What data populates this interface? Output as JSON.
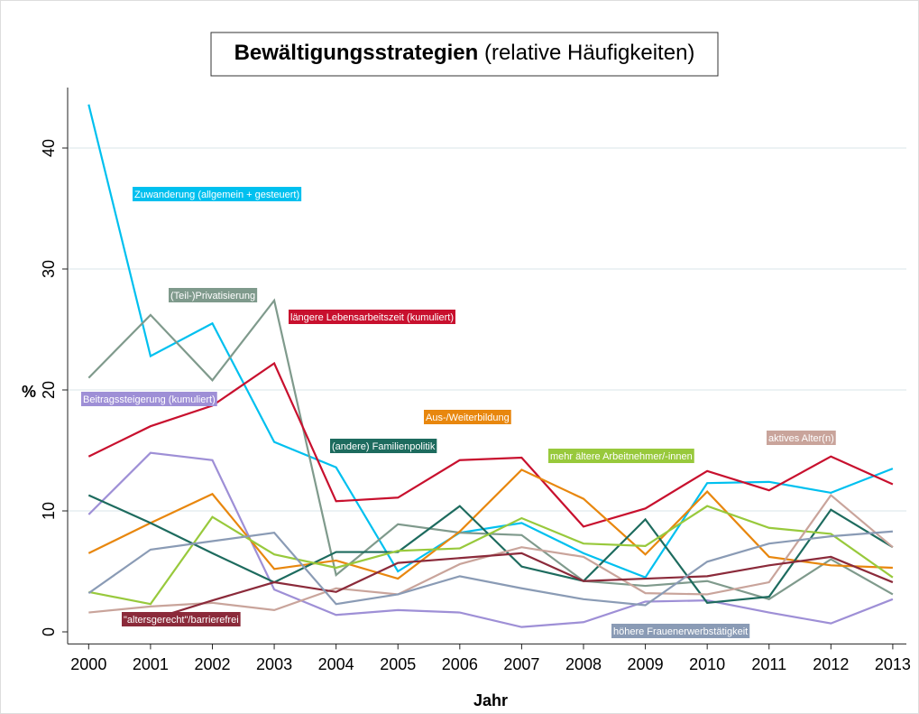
{
  "chart_data": {
    "type": "line",
    "title": "Bewältigungsstrategien",
    "subtitle": "(relative Häufigkeiten)",
    "xlabel": "Jahr",
    "ylabel": "%",
    "x": [
      2000,
      2001,
      2002,
      2003,
      2004,
      2005,
      2006,
      2007,
      2008,
      2009,
      2010,
      2011,
      2012,
      2013
    ],
    "xlim": [
      1999.66,
      2013.22
    ],
    "xticks": [
      2000,
      2001,
      2002,
      2003,
      2004,
      2005,
      2006,
      2007,
      2008,
      2009,
      2010,
      2011,
      2012,
      2013
    ],
    "ylim": [
      -1,
      45
    ],
    "yticks": [
      0,
      10,
      20,
      30,
      40
    ],
    "grid": true,
    "series": [
      {
        "name": "Zuwanderung (allgemein + gesteuert)",
        "color": "#00c0ef",
        "values": [
          43.6,
          22.8,
          25.5,
          15.7,
          13.6,
          5.0,
          8.2,
          9.0,
          6.5,
          4.5,
          12.3,
          12.4,
          11.5,
          13.5
        ]
      },
      {
        "name": "(Teil-)Privatisierung",
        "color": "#7f9a8c",
        "values": [
          21.0,
          26.2,
          20.8,
          27.4,
          4.7,
          8.9,
          8.2,
          8.0,
          4.2,
          3.8,
          4.2,
          2.7,
          6.0,
          3.1
        ]
      },
      {
        "name": "längere Lebensarbeitszeit (kumuliert)",
        "color": "#c8102e",
        "values": [
          14.5,
          17.0,
          18.7,
          22.2,
          10.8,
          11.1,
          14.2,
          14.4,
          8.7,
          10.2,
          13.3,
          11.7,
          14.5,
          12.2
        ]
      },
      {
        "name": "Beitragssteigerung (kumuliert)",
        "color": "#9e8fd6",
        "values": [
          9.7,
          14.8,
          14.2,
          3.5,
          1.4,
          1.8,
          1.6,
          0.4,
          0.8,
          2.5,
          2.6,
          1.6,
          0.7,
          2.7
        ]
      },
      {
        "name": "Aus-/Weiterbildung",
        "color": "#e8870e",
        "values": [
          6.5,
          9.0,
          11.4,
          5.2,
          5.9,
          4.4,
          8.3,
          13.4,
          11.0,
          6.4,
          11.6,
          6.2,
          5.5,
          5.3
        ]
      },
      {
        "name": "(andere) Familienpolitik",
        "color": "#1d6b5e",
        "values": [
          11.3,
          9.0,
          6.5,
          4.1,
          6.6,
          6.6,
          10.4,
          5.4,
          4.2,
          9.3,
          2.4,
          2.9,
          10.1,
          7.0
        ]
      },
      {
        "name": "mehr ältere Arbeitnehmer/-innen",
        "color": "#98c93c",
        "values": [
          3.3,
          2.3,
          9.5,
          6.4,
          5.3,
          6.7,
          6.9,
          9.4,
          7.3,
          7.1,
          10.4,
          8.6,
          8.1,
          4.5
        ]
      },
      {
        "name": "aktives Alter(n)",
        "color": "#c9a49b",
        "values": [
          1.6,
          2.1,
          2.4,
          1.8,
          3.6,
          3.1,
          5.6,
          7.0,
          6.2,
          3.2,
          3.1,
          4.1,
          11.3,
          7.0
        ]
      },
      {
        "name": "\"altersgerecht\"/barrierefrei",
        "color": "#8b2a3a",
        "values": [
          null,
          1.0,
          2.6,
          4.1,
          3.3,
          5.7,
          6.1,
          6.5,
          4.2,
          4.4,
          4.6,
          5.5,
          6.2,
          4.1
        ]
      },
      {
        "name": "höhere Frauenerwerbstätigkeit",
        "color": "#8a9bb5",
        "values": [
          3.2,
          6.8,
          7.5,
          8.2,
          2.3,
          3.1,
          4.6,
          3.6,
          2.7,
          2.2,
          5.8,
          7.3,
          7.9,
          8.3
        ]
      }
    ]
  }
}
